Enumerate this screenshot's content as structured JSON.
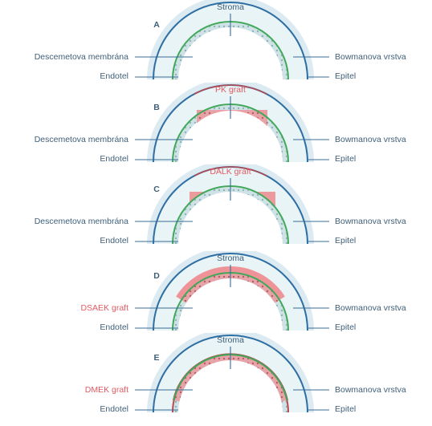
{
  "colors": {
    "outer_line": "#2e6ea3",
    "inner_line": "#41a85a",
    "band_fill": "#e8f4f6",
    "halo_fill": "#dcebf2",
    "leader": "#3a6c96",
    "graft_fill": "#ef7c82",
    "graft_dark": "#b84a50",
    "graft_label": "#e05c63",
    "label_text": "#3f5f78"
  },
  "panels": [
    {
      "letter": "A",
      "top_label": "Stroma",
      "left_upper": "Descemetova membrána",
      "left_lower": "Endotel",
      "right_upper": "Bowmanova vrstva",
      "right_lower": "Epitel",
      "graft": "none"
    },
    {
      "letter": "B",
      "top_label": "PK graft",
      "left_upper": "Descemetova membrána",
      "left_lower": "Endotel",
      "right_upper": "Bowmanova vrstva",
      "right_lower": "Epitel",
      "graft": "pk"
    },
    {
      "letter": "C",
      "top_label": "DALK graft",
      "left_upper": "Descemetova membrána",
      "left_lower": "Endotel",
      "right_upper": "Bowmanova vrstva",
      "right_lower": "Epitel",
      "graft": "dalk"
    },
    {
      "letter": "D",
      "top_label": "Stroma",
      "left_upper": "DSAEK graft",
      "left_lower": "Endotel",
      "right_upper": "Bowmanova vrstva",
      "right_lower": "Epitel",
      "graft": "dsaek"
    },
    {
      "letter": "E",
      "top_label": "Stroma",
      "left_upper": "DMEK graft",
      "left_lower": "Endotel",
      "right_upper": "Bowmanova vrstva",
      "right_lower": "Epitel",
      "graft": "dmek"
    }
  ]
}
